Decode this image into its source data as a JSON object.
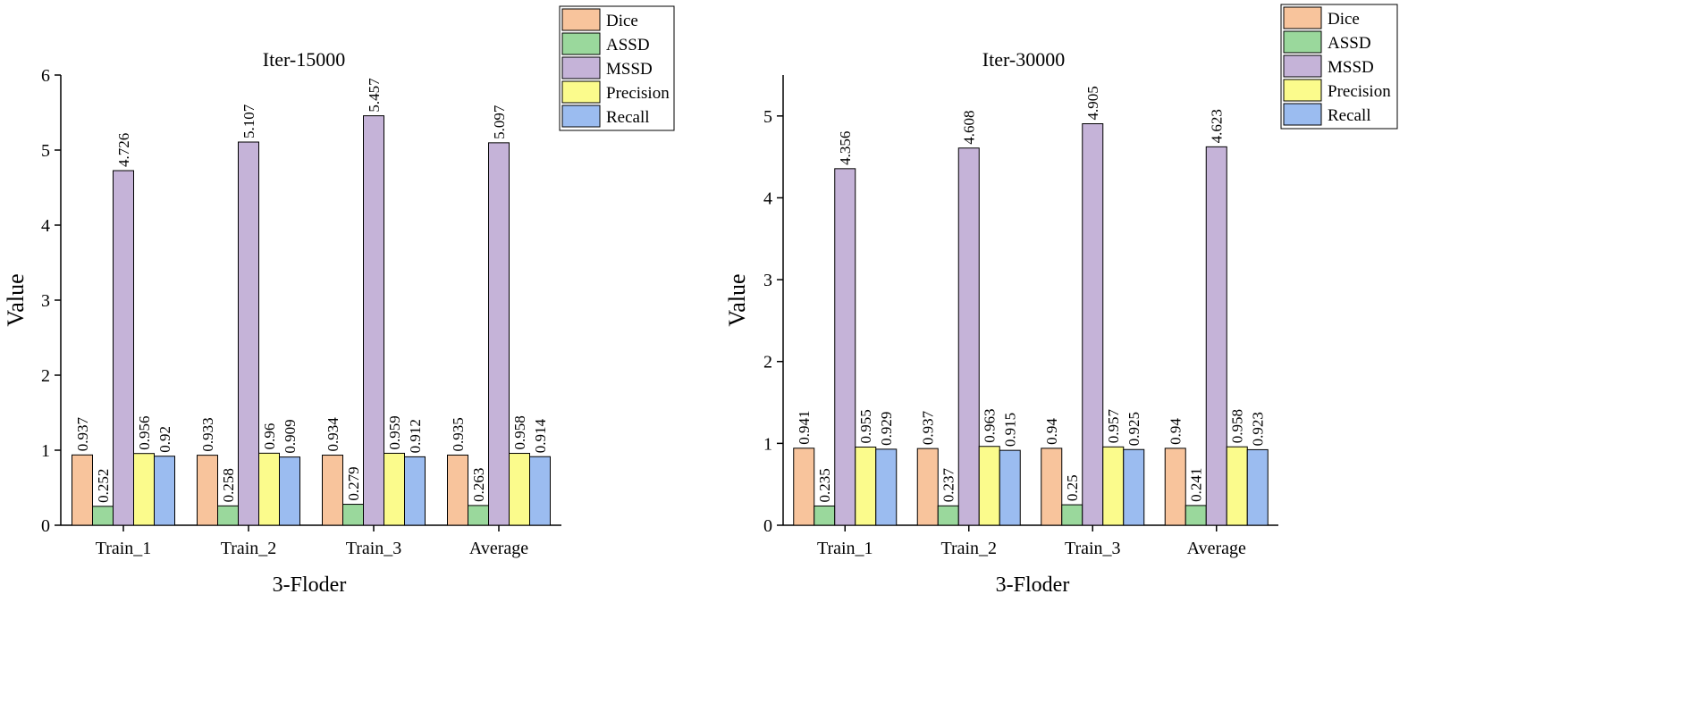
{
  "chart_data": [
    {
      "type": "bar",
      "title": "Iter-15000",
      "xlabel": "3-Floder",
      "ylabel": "Value",
      "ylim": [
        0,
        6
      ],
      "yticks": [
        0,
        1,
        2,
        3,
        4,
        5,
        6
      ],
      "categories": [
        "Train_1",
        "Train_2",
        "Train_3",
        "Average"
      ],
      "grid": false,
      "legend_position": "top-right",
      "series": [
        {
          "name": "Dice",
          "color": "#f8c49c",
          "values": [
            0.937,
            0.933,
            0.934,
            0.935
          ],
          "labels": [
            "0.937",
            "0.933",
            "0.934",
            "0.935"
          ]
        },
        {
          "name": "ASSD",
          "color": "#9ad89c",
          "values": [
            0.252,
            0.258,
            0.279,
            0.263
          ],
          "labels": [
            "0.252",
            "0.258",
            "0.279",
            "0.263"
          ]
        },
        {
          "name": "MSSD",
          "color": "#c5b3d8",
          "values": [
            4.726,
            5.107,
            5.457,
            5.097
          ],
          "labels": [
            "4.726",
            "5.107",
            "5.457",
            "5.097"
          ]
        },
        {
          "name": "Precision",
          "color": "#fbfb8c",
          "values": [
            0.956,
            0.96,
            0.959,
            0.958
          ],
          "labels": [
            "0.956",
            "0.96",
            "0.959",
            "0.958"
          ]
        },
        {
          "name": "Recall",
          "color": "#9bbcf0",
          "values": [
            0.92,
            0.909,
            0.912,
            0.914
          ],
          "labels": [
            "0.92",
            "0.909",
            "0.912",
            "0.914"
          ]
        }
      ]
    },
    {
      "type": "bar",
      "title": "Iter-30000",
      "xlabel": "3-Floder",
      "ylabel": "Value",
      "ylim": [
        0,
        5.5
      ],
      "yticks": [
        0,
        1,
        2,
        3,
        4,
        5
      ],
      "categories": [
        "Train_1",
        "Train_2",
        "Train_3",
        "Average"
      ],
      "grid": false,
      "legend_position": "top-right",
      "series": [
        {
          "name": "Dice",
          "color": "#f8c49c",
          "values": [
            0.941,
            0.937,
            0.94,
            0.94
          ],
          "labels": [
            "0.941",
            "0.937",
            "0.94",
            "0.94"
          ]
        },
        {
          "name": "ASSD",
          "color": "#9ad89c",
          "values": [
            0.235,
            0.237,
            0.25,
            0.241
          ],
          "labels": [
            "0.235",
            "0.237",
            "0.25",
            "0.241"
          ]
        },
        {
          "name": "MSSD",
          "color": "#c5b3d8",
          "values": [
            4.356,
            4.608,
            4.905,
            4.623
          ],
          "labels": [
            "4.356",
            "4.608",
            "4.905",
            "4.623"
          ]
        },
        {
          "name": "Precision",
          "color": "#fbfb8c",
          "values": [
            0.955,
            0.963,
            0.957,
            0.958
          ],
          "labels": [
            "0.955",
            "0.963",
            "0.957",
            "0.958"
          ]
        },
        {
          "name": "Recall",
          "color": "#9bbcf0",
          "values": [
            0.929,
            0.915,
            0.925,
            0.923
          ],
          "labels": [
            "0.929",
            "0.915",
            "0.925",
            "0.923"
          ]
        }
      ]
    }
  ]
}
